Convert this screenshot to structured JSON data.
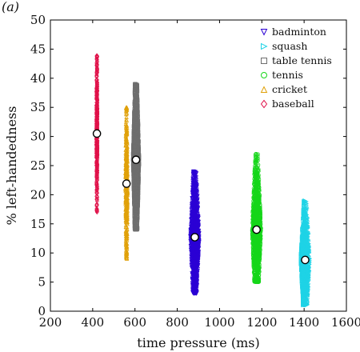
{
  "panel_label": "(a)",
  "chart_data": {
    "type": "scatter",
    "xlabel": "time pressure (ms)",
    "ylabel": "% left-handedness",
    "xlim": [
      200,
      1600
    ],
    "ylim": [
      0,
      50
    ],
    "xticks": [
      "200",
      "400",
      "600",
      "800",
      "1000",
      "1200",
      "1400",
      "1600"
    ],
    "yticks": [
      "0",
      "5",
      "10",
      "15",
      "20",
      "25",
      "30",
      "35",
      "40",
      "45",
      "50"
    ],
    "grid": false,
    "legend_position": "top-right",
    "mean_marker": {
      "shape": "circle",
      "fill": "#ffffff",
      "stroke": "#000000"
    },
    "series": [
      {
        "name": "badminton",
        "marker": "triangle-down",
        "color": "#2b00d4",
        "x_center": 883,
        "x_spread": 22,
        "y_min": 3,
        "y_max": 24,
        "mean": 12.7
      },
      {
        "name": "squash",
        "marker": "triangle-right",
        "color": "#1fd3e6",
        "x_center": 1405,
        "x_spread": 22,
        "y_min": 1,
        "y_max": 19,
        "mean": 8.8
      },
      {
        "name": "table tennis",
        "marker": "square",
        "color": "#6e6e6e",
        "x_center": 605,
        "x_spread": 15,
        "y_min": 14,
        "y_max": 39,
        "mean": 26.0
      },
      {
        "name": "tennis",
        "marker": "circle",
        "color": "#16d61a",
        "x_center": 1175,
        "x_spread": 22,
        "y_min": 5,
        "y_max": 27,
        "mean": 14.0
      },
      {
        "name": "cricket",
        "marker": "triangle-up",
        "color": "#e0a10a",
        "x_center": 560,
        "x_spread": 6,
        "y_min": 9,
        "y_max": 35,
        "mean": 21.9
      },
      {
        "name": "baseball",
        "marker": "diamond",
        "color": "#e0124a",
        "x_center": 420,
        "x_spread": 3,
        "y_min": 17,
        "y_max": 44,
        "mean": 30.5
      }
    ]
  }
}
